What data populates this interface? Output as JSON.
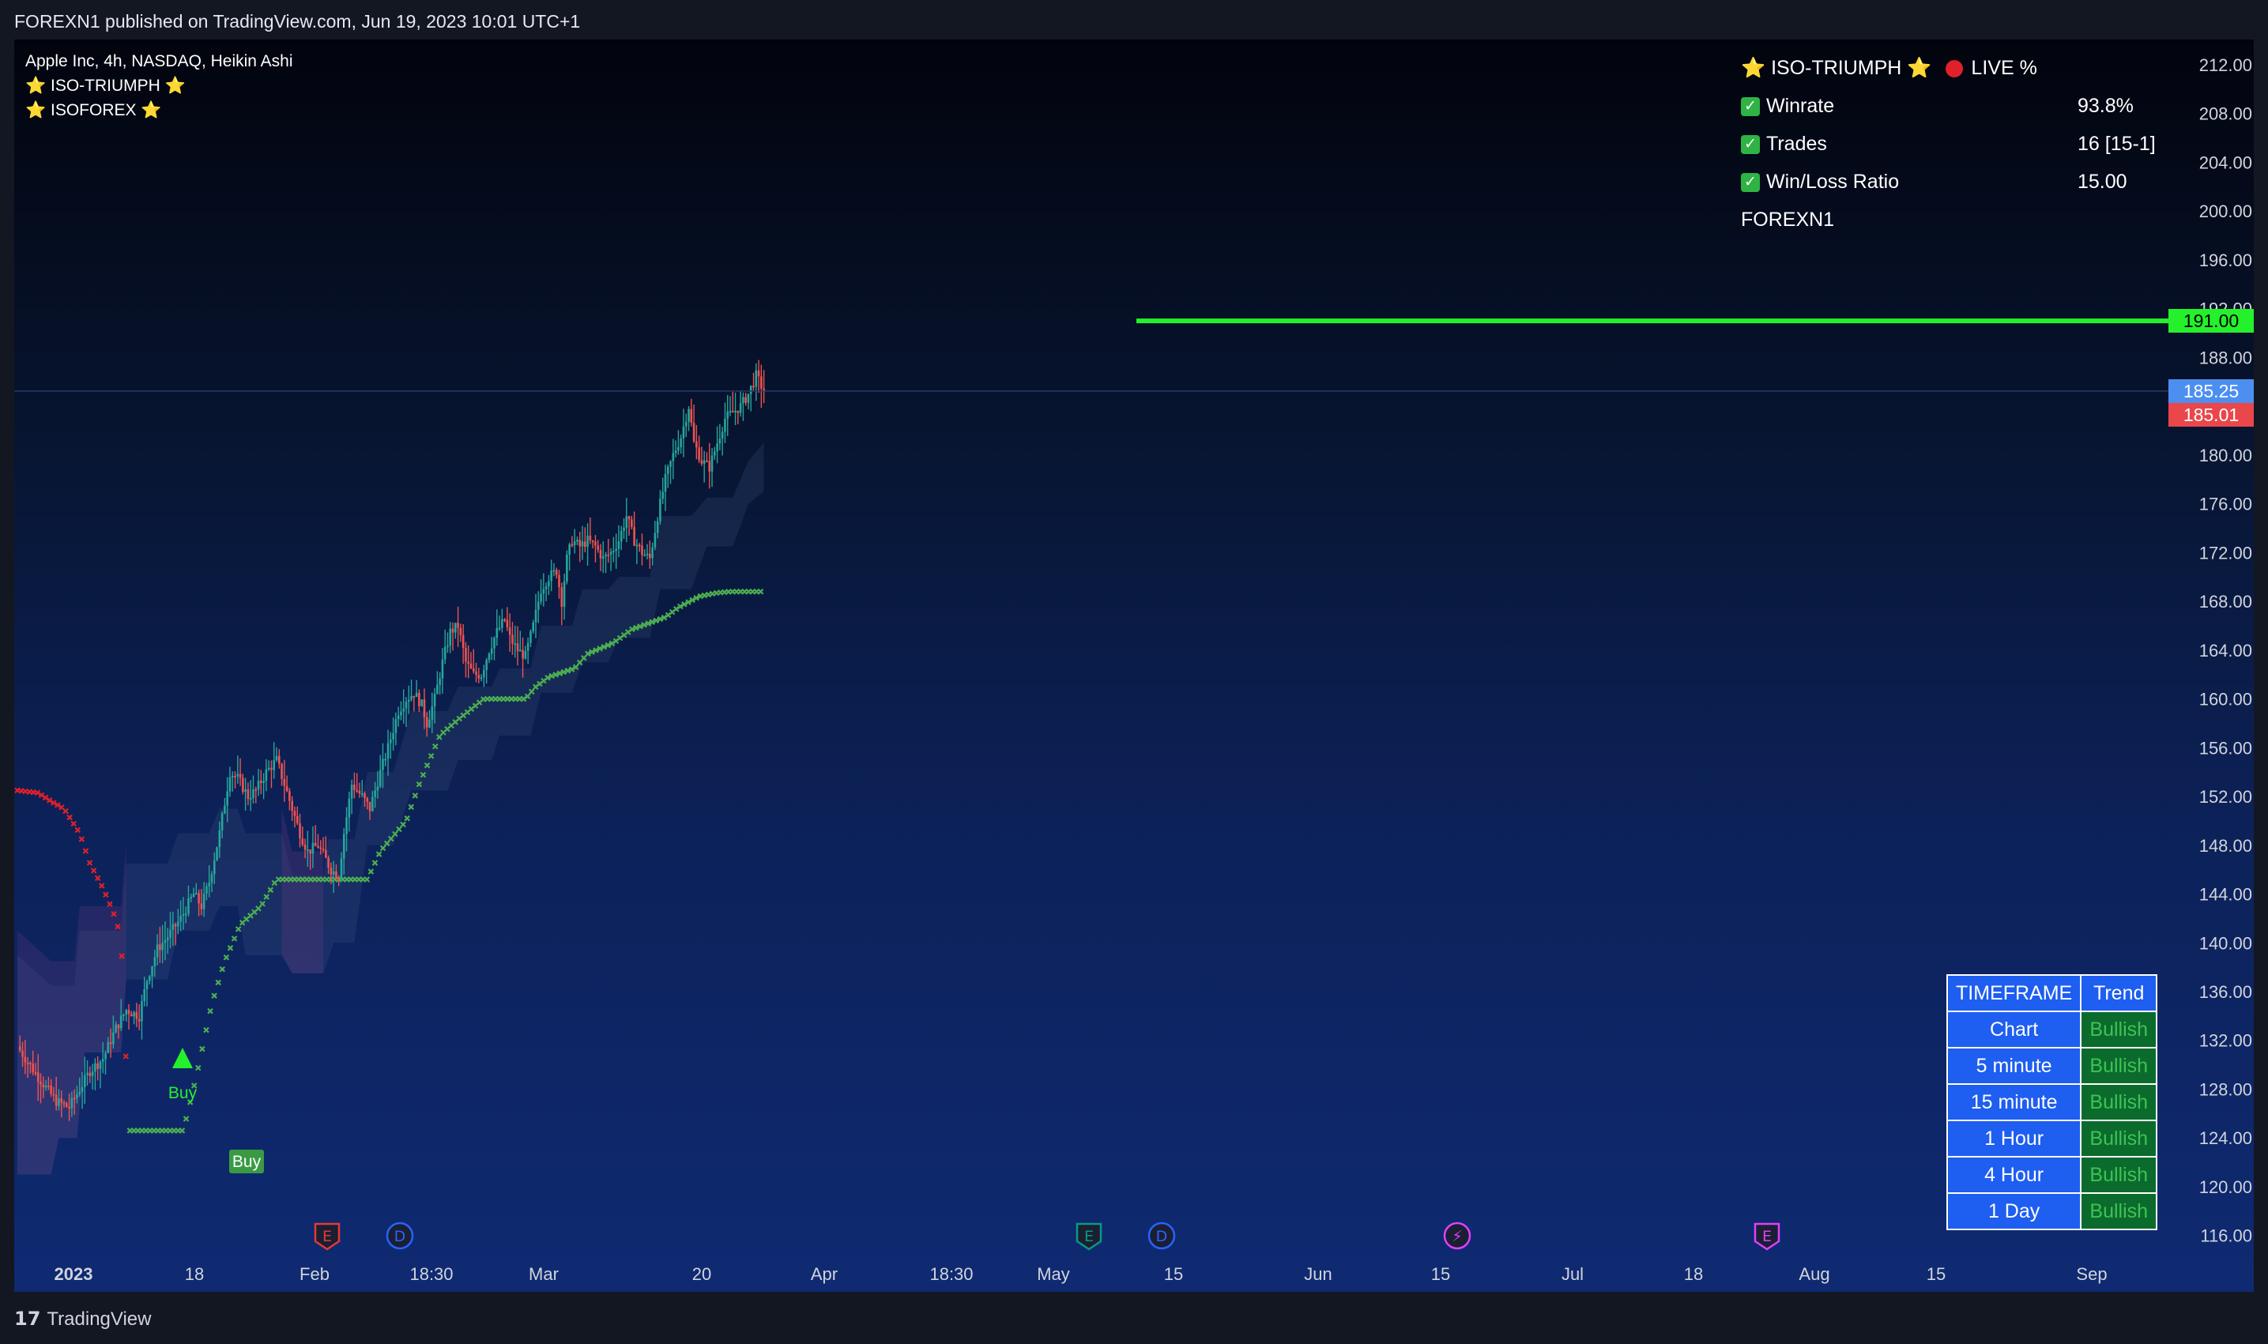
{
  "header": {
    "published": "FOREXN1 published on TradingView.com, Jun 19, 2023 10:01 UTC+1"
  },
  "footer": {
    "brand": "TradingView",
    "logo_glyph": "17"
  },
  "legend": {
    "symbol": "Apple Inc, 4h, NASDAQ, Heikin Ashi",
    "indicators": [
      "⭐ ISO-TRIUMPH ⭐",
      "⭐ ISOFOREX ⭐"
    ]
  },
  "stats": {
    "title": "⭐ ISO-TRIUMPH ⭐",
    "live": "LIVE %",
    "rows": [
      {
        "label": "Winrate",
        "value": "93.8%"
      },
      {
        "label": "Trades",
        "value": "16 [15-1]"
      },
      {
        "label": "Win/Loss Ratio",
        "value": "15.00"
      }
    ],
    "author": "FOREXN1"
  },
  "timeframe_table": {
    "headers": [
      "TIMEFRAME",
      "Trend"
    ],
    "rows": [
      {
        "tf": "Chart",
        "trend": "Bullish"
      },
      {
        "tf": "5 minute",
        "trend": "Bullish"
      },
      {
        "tf": "15 minute",
        "trend": "Bullish"
      },
      {
        "tf": "1 Hour",
        "trend": "Bullish"
      },
      {
        "tf": "4 Hour",
        "trend": "Bullish"
      },
      {
        "tf": "1 Day",
        "trend": "Bullish"
      }
    ]
  },
  "price_tags": [
    {
      "label": "191.00",
      "value": 191.0,
      "color": "#25f02c",
      "text_color": "#000000"
    },
    {
      "label": "185.25",
      "value": 185.25,
      "color": "#4d8ff0",
      "text_color": "#ffffff"
    },
    {
      "label": "185.01",
      "value": 185.01,
      "color": "#e9474a",
      "text_color": "#ffffff"
    }
  ],
  "signals": [
    {
      "label": "Buy",
      "style": "triangle"
    },
    {
      "label": "Buy",
      "style": "box"
    }
  ],
  "events": [
    {
      "letter": "E",
      "color": "#e53935"
    },
    {
      "letter": "D",
      "color": "#2962ff"
    },
    {
      "letter": "E",
      "color": "#089981"
    },
    {
      "letter": "D",
      "color": "#2962ff"
    },
    {
      "letter": "⚡",
      "color": "#e040fb"
    },
    {
      "letter": "E",
      "color": "#e040fb"
    }
  ],
  "chart_data": {
    "type": "candlestick",
    "title": "Apple Inc, 4h, NASDAQ, Heikin Ashi",
    "ylim": [
      113,
      214
    ],
    "y_ticks": [
      212,
      208,
      204,
      200,
      196,
      192,
      188,
      180,
      176,
      172,
      168,
      164,
      160,
      156,
      152,
      148,
      144,
      140,
      136,
      132,
      128,
      124,
      120,
      116
    ],
    "y_tick_labels": [
      "212.00",
      "208.00",
      "204.00",
      "200.00",
      "196.00",
      "192.00",
      "188.00",
      "180.00",
      "176.00",
      "172.00",
      "168.00",
      "164.00",
      "160.00",
      "156.00",
      "152.00",
      "148.00",
      "144.00",
      "140.00",
      "136.00",
      "132.00",
      "128.00",
      "124.00",
      "120.00",
      "116.00"
    ],
    "x_labels": [
      "2023",
      "18",
      "Feb",
      "18:30",
      "Mar",
      "20",
      "Apr",
      "18:30",
      "May",
      "15",
      "Jun",
      "15",
      "Jul",
      "18",
      "Aug",
      "15",
      "Sep"
    ],
    "colors": {
      "up": "#26a69a",
      "down": "#ef5350",
      "stop_bull": "#4caf50",
      "stop_bear": "#e0202a",
      "target": "#25f02c"
    },
    "target_level": 191.0,
    "last_price": 185.25,
    "price_path": [
      [
        0,
        131.5
      ],
      [
        8,
        129
      ],
      [
        15,
        127
      ],
      [
        20,
        126.5
      ],
      [
        24,
        128
      ],
      [
        28,
        129.5
      ],
      [
        33,
        130.5
      ],
      [
        38,
        133
      ],
      [
        42,
        134.5
      ],
      [
        47,
        134
      ],
      [
        50,
        137
      ],
      [
        54,
        139.5
      ],
      [
        58,
        140.5
      ],
      [
        63,
        142
      ],
      [
        68,
        144
      ],
      [
        71,
        143
      ],
      [
        74,
        145
      ],
      [
        78,
        149
      ],
      [
        82,
        154
      ],
      [
        85,
        153.5
      ],
      [
        89,
        152
      ],
      [
        92,
        152.5
      ],
      [
        96,
        154
      ],
      [
        100,
        155
      ],
      [
        103,
        153
      ],
      [
        106,
        151
      ],
      [
        109,
        149
      ],
      [
        112,
        147.5
      ],
      [
        116,
        148
      ],
      [
        121,
        146
      ],
      [
        124,
        145.5
      ],
      [
        126,
        149
      ],
      [
        129,
        153
      ],
      [
        133,
        152
      ],
      [
        136,
        151
      ],
      [
        140,
        154
      ],
      [
        143,
        156
      ],
      [
        147,
        159
      ],
      [
        150,
        160
      ],
      [
        153,
        160.5
      ],
      [
        156,
        159.5
      ],
      [
        158,
        158
      ],
      [
        161,
        160
      ],
      [
        164,
        163
      ],
      [
        167,
        165.5
      ],
      [
        170,
        166
      ],
      [
        173,
        163
      ],
      [
        176,
        162
      ],
      [
        179,
        162
      ],
      [
        182,
        164
      ],
      [
        185,
        165.5
      ],
      [
        188,
        166.5
      ],
      [
        190,
        165
      ],
      [
        193,
        164
      ],
      [
        196,
        163.5
      ],
      [
        199,
        166
      ],
      [
        202,
        169
      ],
      [
        205,
        170
      ],
      [
        208,
        170.5
      ],
      [
        210,
        168
      ],
      [
        212,
        171.5
      ],
      [
        214,
        173
      ],
      [
        217,
        172.5
      ],
      [
        220,
        173
      ],
      [
        223,
        172.5
      ],
      [
        226,
        171.5
      ],
      [
        229,
        172
      ],
      [
        232,
        173
      ],
      [
        235,
        175
      ],
      [
        238,
        173
      ],
      [
        241,
        172
      ],
      [
        244,
        171.5
      ],
      [
        247,
        175
      ],
      [
        250,
        178
      ],
      [
        253,
        180
      ],
      [
        256,
        181.5
      ],
      [
        259,
        184
      ],
      [
        261,
        181
      ],
      [
        264,
        179.5
      ],
      [
        267,
        179
      ],
      [
        270,
        181
      ],
      [
        273,
        183
      ],
      [
        276,
        183.5
      ],
      [
        279,
        184
      ],
      [
        282,
        185
      ],
      [
        285,
        186.5
      ],
      [
        288,
        185.25
      ]
    ],
    "stop_path": [
      [
        0,
        152.5
      ],
      [
        8,
        152.3
      ],
      [
        13,
        151.6
      ],
      [
        18,
        151
      ],
      [
        24,
        149
      ],
      [
        28,
        146.5
      ],
      [
        33,
        144.5
      ],
      [
        37,
        142.5
      ],
      [
        40,
        140.5
      ],
      [
        43,
        124.6
      ],
      [
        54,
        124.6
      ],
      [
        64,
        124.6
      ],
      [
        69,
        129
      ],
      [
        75,
        135
      ],
      [
        80,
        138.5
      ],
      [
        86,
        141.5
      ],
      [
        94,
        143
      ],
      [
        100,
        145.2
      ],
      [
        118,
        145.2
      ],
      [
        135,
        145.2
      ],
      [
        140,
        147.5
      ],
      [
        150,
        150
      ],
      [
        155,
        153
      ],
      [
        163,
        157
      ],
      [
        170,
        158.3
      ],
      [
        180,
        160
      ],
      [
        186,
        160
      ],
      [
        196,
        160
      ],
      [
        200,
        161
      ],
      [
        205,
        161.8
      ],
      [
        215,
        162.5
      ],
      [
        220,
        163.7
      ],
      [
        230,
        164.6
      ],
      [
        237,
        165.7
      ],
      [
        250,
        166.7
      ],
      [
        255,
        167.5
      ],
      [
        263,
        168.4
      ],
      [
        270,
        168.7
      ],
      [
        275,
        168.8
      ],
      [
        288,
        168.8
      ]
    ],
    "stop_split_index": 9,
    "cloud_upper": [
      [
        0,
        139
      ],
      [
        13,
        136.5
      ],
      [
        22,
        136.5
      ],
      [
        24,
        141
      ],
      [
        40,
        141
      ],
      [
        42,
        146.5
      ],
      [
        58,
        146.5
      ],
      [
        62,
        149
      ],
      [
        74,
        149
      ],
      [
        78,
        151
      ],
      [
        85,
        151
      ],
      [
        88,
        149
      ],
      [
        102,
        149
      ],
      [
        106,
        145.5
      ],
      [
        118,
        145.5
      ],
      [
        120,
        148.5
      ],
      [
        130,
        148.5
      ],
      [
        135,
        154
      ],
      [
        145,
        154
      ],
      [
        152,
        159
      ],
      [
        166,
        159
      ],
      [
        170,
        161
      ],
      [
        183,
        161
      ],
      [
        186,
        162.5
      ],
      [
        198,
        162.5
      ],
      [
        202,
        166
      ],
      [
        214,
        166
      ],
      [
        218,
        169
      ],
      [
        228,
        169
      ],
      [
        232,
        170
      ],
      [
        244,
        170
      ],
      [
        248,
        175
      ],
      [
        260,
        175
      ],
      [
        266,
        176.5
      ],
      [
        276,
        176.5
      ],
      [
        282,
        179.5
      ],
      [
        288,
        181
      ]
    ],
    "cloud_lower": [
      [
        0,
        121
      ],
      [
        13,
        121
      ],
      [
        16,
        124
      ],
      [
        23,
        124
      ],
      [
        26,
        131
      ],
      [
        40,
        131
      ],
      [
        42,
        137
      ],
      [
        58,
        137
      ],
      [
        62,
        141
      ],
      [
        74,
        141
      ],
      [
        78,
        143
      ],
      [
        85,
        143
      ],
      [
        88,
        139
      ],
      [
        102,
        139
      ],
      [
        106,
        137.5
      ],
      [
        118,
        137.5
      ],
      [
        122,
        140
      ],
      [
        130,
        140
      ],
      [
        135,
        148
      ],
      [
        145,
        148
      ],
      [
        152,
        152.5
      ],
      [
        166,
        152.5
      ],
      [
        170,
        155
      ],
      [
        183,
        155
      ],
      [
        186,
        157
      ],
      [
        198,
        157
      ],
      [
        202,
        160.5
      ],
      [
        214,
        160.5
      ],
      [
        218,
        163
      ],
      [
        228,
        163
      ],
      [
        232,
        165
      ],
      [
        244,
        165
      ],
      [
        248,
        169
      ],
      [
        260,
        169
      ],
      [
        266,
        172.5
      ],
      [
        276,
        172.5
      ],
      [
        282,
        176
      ],
      [
        288,
        177
      ]
    ]
  }
}
